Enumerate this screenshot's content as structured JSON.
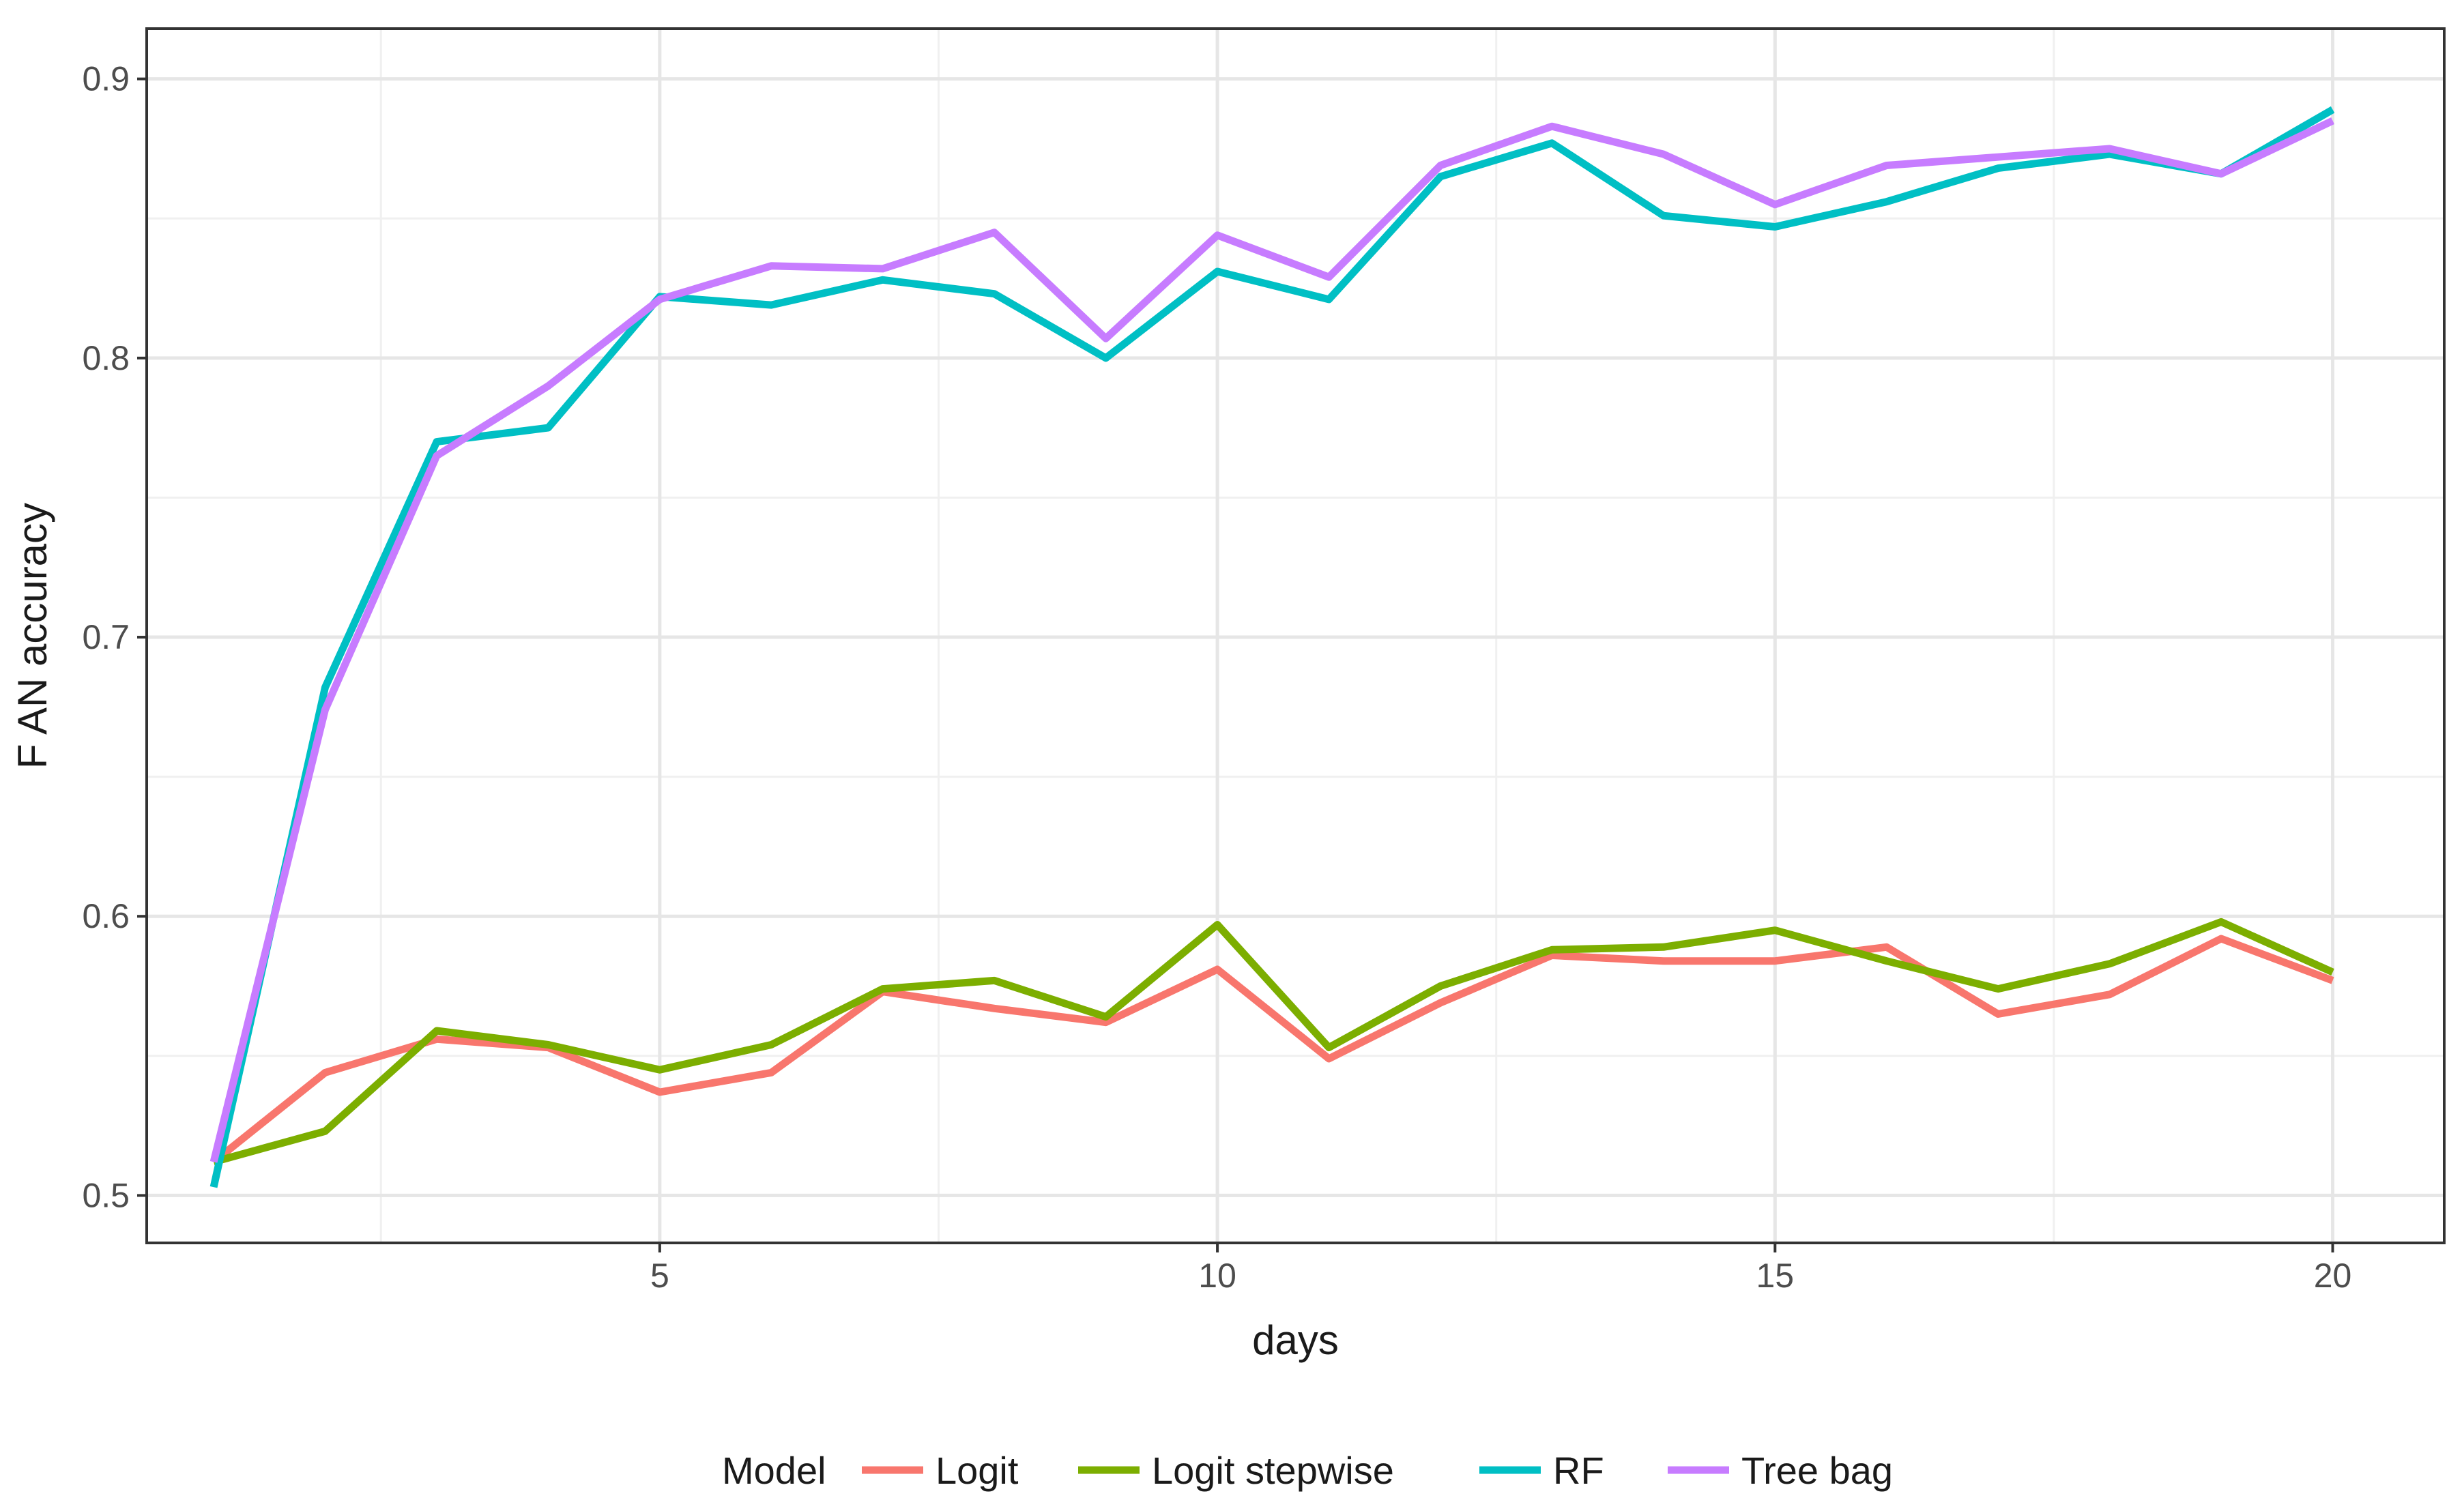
{
  "chart_data": {
    "type": "line",
    "xlabel": "days",
    "ylabel": "F AN accuracy",
    "xlim": [
      0.4,
      21.0
    ],
    "ylim": [
      0.483,
      0.918
    ],
    "x_ticks": [
      5,
      10,
      15,
      20
    ],
    "x_tick_labels": [
      "5",
      "10",
      "15",
      "20"
    ],
    "y_ticks": [
      0.5,
      0.6,
      0.7,
      0.8,
      0.9
    ],
    "y_tick_labels": [
      "0.5",
      "0.6",
      "0.7",
      "0.8",
      "0.9"
    ],
    "grid": true,
    "legend": {
      "title": "Model",
      "position": "bottom"
    },
    "x": [
      1,
      2,
      3,
      4,
      5,
      6,
      7,
      8,
      9,
      10,
      11,
      12,
      13,
      14,
      15,
      16,
      17,
      18,
      19,
      20
    ],
    "series": [
      {
        "name": "Logit",
        "color": "#F8766D",
        "values": [
          0.512,
          0.544,
          0.556,
          0.553,
          0.537,
          0.544,
          0.573,
          0.567,
          0.562,
          0.581,
          0.549,
          0.569,
          0.586,
          0.584,
          0.584,
          0.589,
          0.565,
          0.572,
          0.592,
          0.577
        ]
      },
      {
        "name": "Logit stepwise",
        "color": "#7CAE00",
        "values": [
          0.512,
          0.523,
          0.559,
          0.554,
          0.545,
          0.554,
          0.574,
          0.577,
          0.564,
          0.597,
          0.553,
          0.575,
          0.588,
          0.589,
          0.595,
          0.584,
          0.574,
          0.583,
          0.598,
          0.58
        ]
      },
      {
        "name": "RF",
        "color": "#00BFC4",
        "values": [
          0.503,
          0.682,
          0.77,
          0.775,
          0.822,
          0.819,
          0.828,
          0.823,
          0.8,
          0.831,
          0.821,
          0.865,
          0.877,
          0.851,
          0.847,
          0.856,
          0.868,
          0.873,
          0.866,
          0.889
        ]
      },
      {
        "name": "Tree bag",
        "color": "#C77CFF",
        "values": [
          0.512,
          0.674,
          0.765,
          0.79,
          0.821,
          0.833,
          0.832,
          0.845,
          0.807,
          0.844,
          0.829,
          0.869,
          0.883,
          0.873,
          0.855,
          0.869,
          0.872,
          0.875,
          0.866,
          0.885
        ]
      }
    ]
  }
}
